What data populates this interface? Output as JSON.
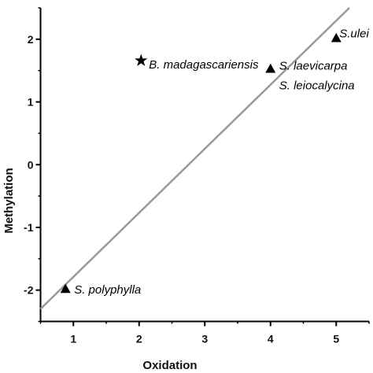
{
  "chart_data": {
    "type": "scatter",
    "xlabel": "Oxidation",
    "ylabel": "Methylation",
    "xlim": [
      0.5,
      5.5
    ],
    "ylim": [
      -2.5,
      2.5
    ],
    "xticks": [
      1,
      2,
      3,
      4,
      5
    ],
    "yticks": [
      -2,
      -1,
      0,
      1,
      2
    ],
    "grid": false,
    "trend_line": {
      "x": [
        0.5,
        5.2
      ],
      "y": [
        -2.3,
        2.5
      ],
      "color": "#999999"
    },
    "points": [
      {
        "label": "S. polyphylla",
        "x": 0.88,
        "y": -1.98,
        "marker": "triangle"
      },
      {
        "label": "B. madagascariensis",
        "x": 2.03,
        "y": 1.66,
        "marker": "star"
      },
      {
        "label": "S. laevicarpa",
        "x": 4.0,
        "y": 1.53,
        "marker": "triangle"
      },
      {
        "label": "S. leiocalycina",
        "x": 4.0,
        "y": 1.53,
        "marker": "none"
      },
      {
        "label": "S.ulei",
        "x": 5.0,
        "y": 2.02,
        "marker": "triangle"
      }
    ]
  }
}
